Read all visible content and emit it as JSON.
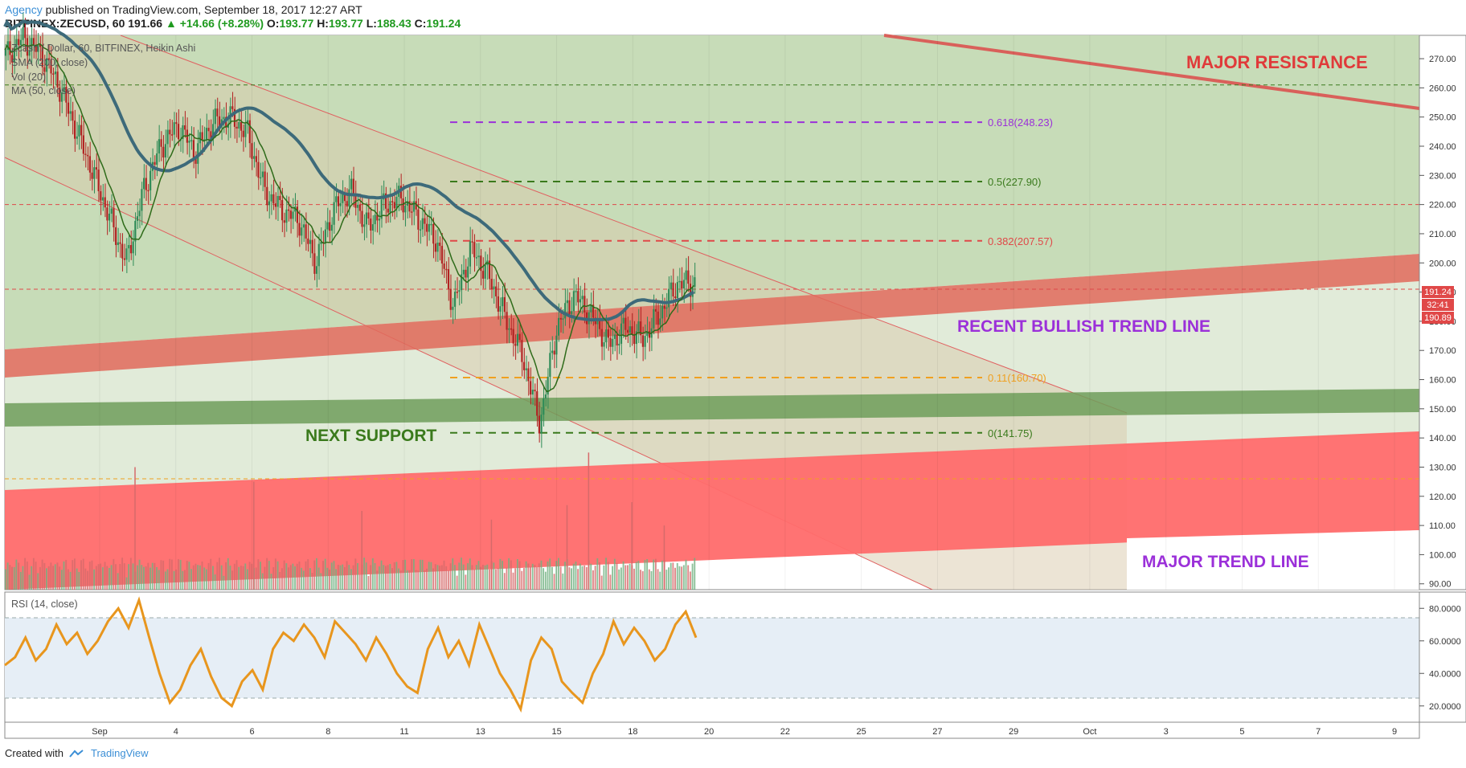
{
  "header": {
    "publisher": "Agency",
    "published_text": "published on TradingView.com, September 18, 2017 12:27 ART",
    "symbol": "BITFINEX:ZECUSD, 60",
    "last": "191.66",
    "change": "▲ +14.66 (+8.28%)",
    "open_label": "O:",
    "open": "193.77",
    "high_label": "H:",
    "high": "193.77",
    "low_label": "L:",
    "low": "188.43",
    "close_label": "C:",
    "close": "191.24"
  },
  "legend": {
    "line1": "Zcash / Dollar, 60, BITFINEX, Heikin Ashi",
    "line2": "SMA (200, close)",
    "line3": "Vol (20)",
    "line4": "MA (50, close)"
  },
  "annotations": {
    "major_resistance": "MAJOR RESISTANCE",
    "recent_bullish": "RECENT BULLISH TREND LINE",
    "next_support": "NEXT SUPPORT",
    "major_trend": "MAJOR TREND LINE"
  },
  "price_badges": {
    "current": "191.24",
    "countdown": "32:41",
    "ma": "190.89"
  },
  "rsi_label": "RSI (14, close)",
  "footer": {
    "created_with": "Created with",
    "brand": "TradingView"
  },
  "colors": {
    "candle_up": "#2e8b57",
    "candle_down": "#b22222",
    "sma200": "#3d6a7a",
    "ma50": "#2e6b1a",
    "rsi": "#e8961e",
    "resistance_zone": "#f2a6a6",
    "support_zone": "#6e9e5a",
    "bg_green": "#c7dcb8"
  },
  "chart_data": [
    {
      "type": "candlestick",
      "title": "Zcash / Dollar, 60, BITFINEX, Heikin Ashi",
      "x_ticks": [
        "Sep",
        "4",
        "6",
        "8",
        "11",
        "13",
        "15",
        "18",
        "20",
        "22",
        "25",
        "27",
        "29",
        "Oct",
        "3",
        "5",
        "7",
        "9"
      ],
      "y_ticks": [
        "270.00",
        "260.00",
        "250.00",
        "240.00",
        "230.00",
        "220.00",
        "210.00",
        "200.00",
        "190.00",
        "180.00",
        "170.00",
        "160.00",
        "150.00",
        "140.00",
        "130.00",
        "120.00",
        "110.00",
        "100.00",
        "90.00"
      ],
      "ylim": [
        88,
        278
      ],
      "price_path": [
        [
          0,
          271
        ],
        [
          1,
          277
        ],
        [
          2,
          272
        ],
        [
          3,
          262
        ],
        [
          4,
          247
        ],
        [
          5,
          232
        ],
        [
          6,
          216
        ],
        [
          7,
          200
        ],
        [
          8,
          225
        ],
        [
          9,
          240
        ],
        [
          10,
          247
        ],
        [
          11,
          238
        ],
        [
          12,
          248
        ],
        [
          13,
          250
        ],
        [
          14,
          245
        ],
        [
          15,
          225
        ],
        [
          16,
          218
        ],
        [
          17,
          215
        ],
        [
          18,
          200
        ],
        [
          19,
          218
        ],
        [
          20,
          225
        ],
        [
          21,
          212
        ],
        [
          22,
          220
        ],
        [
          23,
          222
        ],
        [
          24,
          215
        ],
        [
          25,
          208
        ],
        [
          26,
          185
        ],
        [
          27,
          205
        ],
        [
          28,
          196
        ],
        [
          29,
          181
        ],
        [
          30,
          168
        ],
        [
          31,
          145
        ],
        [
          32,
          178
        ],
        [
          33,
          189
        ],
        [
          34,
          182
        ],
        [
          35,
          172
        ],
        [
          36,
          178
        ],
        [
          37,
          174
        ],
        [
          38,
          183
        ],
        [
          39,
          193
        ],
        [
          40,
          193
        ]
      ],
      "volume_spikes": [
        [
          12,
          130
        ],
        [
          23,
          125
        ],
        [
          33,
          115
        ],
        [
          45,
          112
        ],
        [
          52,
          117
        ],
        [
          54,
          135
        ],
        [
          58,
          118
        ],
        [
          61,
          110
        ]
      ],
      "fibonacci": [
        {
          "level": "0.618",
          "price": 248.23,
          "label": "0.618(248.23)"
        },
        {
          "level": "0.5",
          "price": 227.9,
          "label": "0.5(227.90)"
        },
        {
          "level": "0.382",
          "price": 207.57,
          "label": "0.382(207.57)"
        },
        {
          "level": "0.11",
          "price": 160.7,
          "label": "0.11(160.70)"
        },
        {
          "level": "0",
          "price": 141.75,
          "label": "0(141.75)"
        }
      ],
      "horizontal_lines": [
        261,
        220,
        191,
        126
      ],
      "grid": true
    },
    {
      "type": "line",
      "title": "RSI (14, close)",
      "y_ticks": [
        "80.0000",
        "60.0000",
        "40.0000",
        "20.0000"
      ],
      "ylim": [
        10,
        90
      ],
      "bands": [
        25,
        75
      ],
      "values": [
        45,
        50,
        62,
        48,
        55,
        70,
        58,
        65,
        52,
        60,
        72,
        80,
        68,
        85,
        62,
        40,
        22,
        30,
        45,
        55,
        38,
        25,
        20,
        35,
        42,
        30,
        55,
        65,
        60,
        70,
        62,
        50,
        72,
        65,
        58,
        48,
        62,
        52,
        40,
        32,
        28,
        55,
        68,
        50,
        60,
        45,
        70,
        55,
        40,
        30,
        18,
        48,
        62,
        55,
        35,
        28,
        22,
        40,
        52,
        72,
        58,
        68,
        60,
        48,
        55,
        70,
        78,
        62
      ]
    }
  ]
}
